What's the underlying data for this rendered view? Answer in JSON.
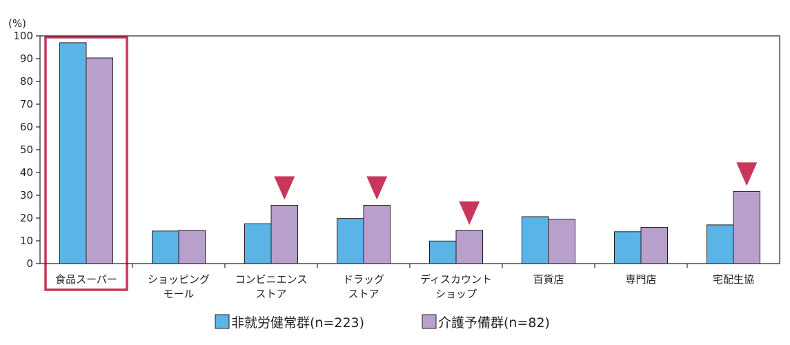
{
  "chart_data": {
    "type": "bar",
    "ylabel": "(%)",
    "ylim": [
      0,
      100
    ],
    "yticks": [
      0,
      10,
      20,
      30,
      40,
      50,
      60,
      70,
      80,
      90,
      100
    ],
    "categories": [
      [
        "食品スーパー"
      ],
      [
        "ショッピング",
        "モール"
      ],
      [
        "コンビニエンス",
        "ストア"
      ],
      [
        "ドラッグ",
        "ストア"
      ],
      [
        "ディスカウント",
        "ショップ"
      ],
      [
        "百貨店"
      ],
      [
        "専門店"
      ],
      [
        "宅配生協"
      ]
    ],
    "series": [
      {
        "name": "非就労健常群(n=223)",
        "color": "#5ab4e6",
        "values": [
          97,
          14.3,
          17.5,
          19.8,
          9.9,
          20.6,
          14.0,
          17.0
        ]
      },
      {
        "name": "介護予備群(n=82)",
        "color": "#b8a0cc",
        "values": [
          90.3,
          14.6,
          25.6,
          25.6,
          14.6,
          19.5,
          15.9,
          31.7
        ]
      }
    ],
    "highlight_category_index": 0,
    "highlight_color": "#c8375a",
    "marker_category_indices": [
      2,
      3,
      4,
      7
    ],
    "marker_color": "#c8375a",
    "grid": false,
    "legend_position": "bottom-center"
  }
}
